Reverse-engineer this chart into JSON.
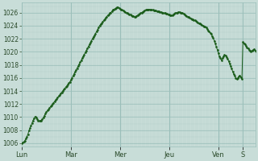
{
  "ylim": [
    1005.5,
    1027.5
  ],
  "yticks": [
    1006,
    1008,
    1010,
    1012,
    1014,
    1016,
    1018,
    1020,
    1022,
    1024,
    1026
  ],
  "day_labels": [
    "Lun",
    "Mar",
    "Mer",
    "Jeu",
    "Ven",
    "S"
  ],
  "day_positions": [
    0,
    48,
    96,
    144,
    192,
    216
  ],
  "xlim": [
    0,
    228
  ],
  "bg_color": "#c8ddd8",
  "grid_major_color": "#9bbfba",
  "grid_minor_color": "#b5d0cb",
  "line_color": "#1a5c1a",
  "pressure_data": [
    1006.0,
    1006.1,
    1006.2,
    1006.4,
    1006.7,
    1007.0,
    1007.4,
    1007.9,
    1008.3,
    1008.7,
    1009.1,
    1009.5,
    1009.8,
    1010.1,
    1009.9,
    1009.7,
    1009.5,
    1009.4,
    1009.4,
    1009.5,
    1009.7,
    1009.9,
    1010.2,
    1010.5,
    1010.8,
    1011.0,
    1011.2,
    1011.4,
    1011.6,
    1011.8,
    1012.0,
    1012.2,
    1012.4,
    1012.6,
    1012.8,
    1013.0,
    1013.2,
    1013.4,
    1013.6,
    1013.8,
    1014.0,
    1014.2,
    1014.4,
    1014.6,
    1014.8,
    1015.0,
    1015.2,
    1015.4,
    1015.7,
    1016.0,
    1016.3,
    1016.6,
    1016.9,
    1017.2,
    1017.5,
    1017.8,
    1018.1,
    1018.4,
    1018.7,
    1019.0,
    1019.3,
    1019.6,
    1019.9,
    1020.2,
    1020.5,
    1020.8,
    1021.1,
    1021.4,
    1021.7,
    1022.0,
    1022.3,
    1022.5,
    1022.8,
    1023.1,
    1023.4,
    1023.7,
    1024.0,
    1024.2,
    1024.4,
    1024.6,
    1024.8,
    1025.0,
    1025.2,
    1025.4,
    1025.6,
    1025.7,
    1025.9,
    1026.0,
    1026.2,
    1026.4,
    1026.5,
    1026.6,
    1026.7,
    1026.8,
    1026.8,
    1026.7,
    1026.6,
    1026.5,
    1026.4,
    1026.3,
    1026.2,
    1026.1,
    1026.0,
    1025.9,
    1025.8,
    1025.7,
    1025.7,
    1025.6,
    1025.5,
    1025.5,
    1025.4,
    1025.4,
    1025.5,
    1025.6,
    1025.7,
    1025.8,
    1025.9,
    1026.0,
    1026.1,
    1026.2,
    1026.3,
    1026.4,
    1026.4,
    1026.5,
    1026.5,
    1026.5,
    1026.4,
    1026.4,
    1026.4,
    1026.3,
    1026.3,
    1026.3,
    1026.2,
    1026.2,
    1026.2,
    1026.1,
    1026.1,
    1026.0,
    1026.0,
    1025.9,
    1025.9,
    1025.8,
    1025.8,
    1025.7,
    1025.7,
    1025.6,
    1025.6,
    1025.6,
    1025.7,
    1025.8,
    1025.9,
    1026.0,
    1026.0,
    1026.1,
    1026.1,
    1026.0,
    1026.0,
    1025.9,
    1025.8,
    1025.7,
    1025.6,
    1025.5,
    1025.4,
    1025.3,
    1025.2,
    1025.1,
    1025.0,
    1025.0,
    1024.9,
    1024.8,
    1024.7,
    1024.6,
    1024.5,
    1024.4,
    1024.3,
    1024.2,
    1024.1,
    1024.0,
    1023.9,
    1023.8,
    1023.7,
    1023.5,
    1023.3,
    1023.1,
    1022.9,
    1022.7,
    1022.4,
    1022.1,
    1021.7,
    1021.3,
    1020.8,
    1020.3,
    1019.8,
    1019.3,
    1019.0,
    1018.7,
    1019.0,
    1019.3,
    1019.5,
    1019.4,
    1019.2,
    1018.9,
    1018.6,
    1018.2,
    1017.8,
    1017.4,
    1017.0,
    1016.6,
    1016.3,
    1016.0,
    1015.8,
    1016.0,
    1016.2,
    1016.4,
    1016.1,
    1015.8,
    1021.5,
    1021.3,
    1021.1,
    1020.9,
    1020.7,
    1020.5,
    1020.3,
    1020.2,
    1020.1,
    1020.2,
    1020.3,
    1020.4,
    1020.2,
    1020.0,
    1020.1,
    1020.3
  ]
}
